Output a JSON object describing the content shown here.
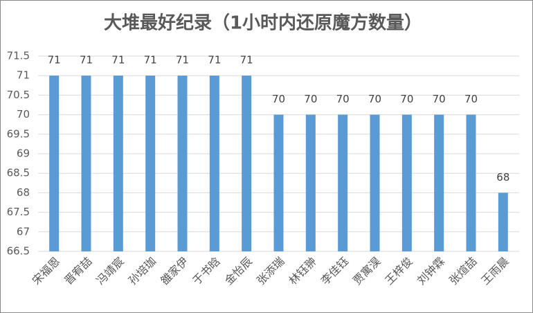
{
  "chart_data": {
    "type": "bar",
    "title": "大堆最好纪录（1小时内还原魔方数量）",
    "categories": [
      "宋福恩",
      "晋宥喆",
      "冯靖宸",
      "孙培珈",
      "雒家伊",
      "于书晗",
      "金怡辰",
      "张添瑞",
      "林钰翀",
      "李佳钰",
      "贾寓淏",
      "王梓俊",
      "刘钟霖",
      "张煊喆",
      "王雨晨"
    ],
    "values": [
      71,
      71,
      71,
      71,
      71,
      71,
      71,
      70,
      70,
      70,
      70,
      70,
      70,
      70,
      68
    ],
    "color": "#5b9bd5",
    "ylim": [
      66.5,
      71.5
    ],
    "yticks": [
      66.5,
      67,
      67.5,
      68,
      68.5,
      69,
      69.5,
      70,
      70.5,
      71,
      71.5
    ],
    "grid": true
  }
}
